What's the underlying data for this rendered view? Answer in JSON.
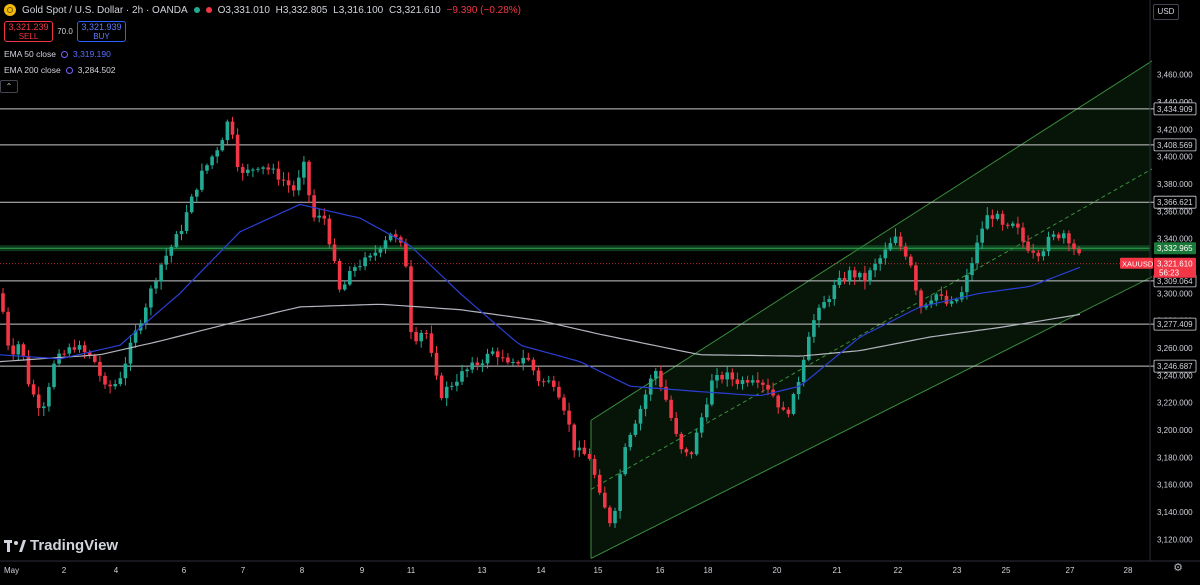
{
  "header": {
    "symbol_title": "Gold Spot / U.S. Dollar · 2h · OANDA",
    "open": "O3,331.010",
    "high": "H3,332.805",
    "low": "L3,316.100",
    "close": "C3,321.610",
    "change": "−9.390 (−0.28%)"
  },
  "trade": {
    "sell_price": "3,321.239",
    "sell_label": "SELL",
    "spread": "70.0",
    "buy_price": "3,321.939",
    "buy_label": "BUY"
  },
  "indicators": [
    {
      "label": "EMA 50 close",
      "value": "3,319.190"
    },
    {
      "label": "EMA 200 close",
      "value": "3,284.502"
    }
  ],
  "collapse_icon": "chevron-up-icon",
  "currency": "USD",
  "branding": "TradingView",
  "colors": {
    "background": "#000000",
    "up": "#22ab94",
    "down": "#f23645",
    "ema50": "#2b3fd6",
    "ema200": "#b2b5be",
    "channel": "#2e7d32",
    "resistance_band": "#1b7a3a"
  },
  "chart_data": {
    "type": "candlestick",
    "title": "Gold Spot / U.S. Dollar · 2h · OANDA",
    "x_tick_labels": [
      "May",
      "2",
      "4",
      "6",
      "7",
      "8",
      "9",
      "11",
      "13",
      "14",
      "15",
      "16",
      "18",
      "20",
      "21",
      "22",
      "23",
      "25",
      "27",
      "28"
    ],
    "y_tick_labels": [
      "3,120.000",
      "3,140.000",
      "3,160.000",
      "3,180.000",
      "3,200.000",
      "3,220.000",
      "3,240.000",
      "3,260.000",
      "3,280.000",
      "3,300.000",
      "3,320.000",
      "3,340.000",
      "3,360.000",
      "3,380.000",
      "3,400.000",
      "3,420.000",
      "3,440.000",
      "3,460.000"
    ],
    "ylim": [
      3105,
      3472
    ],
    "horizontal_levels": [
      {
        "label": "3,434.909",
        "value": 3434.909
      },
      {
        "label": "3,408.569",
        "value": 3408.569
      },
      {
        "label": "3,366.621",
        "value": 3366.621
      },
      {
        "label": "3,309.064",
        "value": 3309.064
      },
      {
        "label": "3,277.409",
        "value": 3277.409
      },
      {
        "label": "3,246.687",
        "value": 3246.687
      }
    ],
    "resistance_band": {
      "label": "3,332.965",
      "value": 3332.965
    },
    "last_price": {
      "symbol": "XAUUSD",
      "price": "3,321.610",
      "countdown": "56:23",
      "value": 3321.61
    },
    "channel": {
      "start": {
        "x": "15",
        "bottom": 3106,
        "top": 3207
      },
      "end": {
        "x": "right edge",
        "bottom": 3312,
        "top": 3470
      }
    },
    "candles_summary": "Gold 2h candles from May 1 to May 27: rally to ~3,438 on May 6-7, decline to ~3,121 on May 15, then rising channel recovery to ~3,321.6",
    "series": [
      {
        "name": "EMA 50 close",
        "value": 3319.19
      },
      {
        "name": "EMA 200 close",
        "value": 3284.502
      }
    ]
  }
}
